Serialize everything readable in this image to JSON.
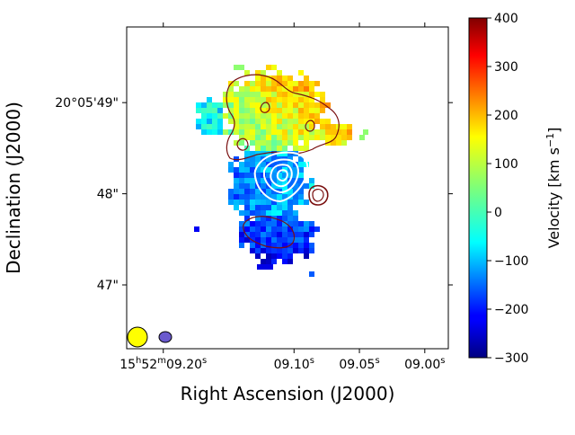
{
  "chart_data": {
    "type": "heatmap",
    "xlabel": "Right Ascension (J2000)",
    "ylabel": "Declination (J2000)",
    "x_ticks": [
      {
        "value": 9.2,
        "prefix": "15",
        "sup1": "h",
        "mid": "52",
        "sup2": "m",
        "rest": "09.20",
        "sup3": "s"
      },
      {
        "value": 9.1,
        "prefix": "",
        "sup1": "",
        "mid": "",
        "sup2": "",
        "rest": "09.10",
        "sup3": "s"
      },
      {
        "value": 9.05,
        "prefix": "",
        "sup1": "",
        "mid": "",
        "sup2": "",
        "rest": "09.05",
        "sup3": "s"
      },
      {
        "value": 9.0,
        "prefix": "",
        "sup1": "",
        "mid": "",
        "sup2": "",
        "rest": "09.00",
        "sup3": "s"
      }
    ],
    "y_ticks": [
      {
        "value": 49,
        "label": "20°05'49\""
      },
      {
        "value": 48,
        "label": "48\""
      },
      {
        "value": 47,
        "label": "47\""
      }
    ],
    "xlim": [
      9.228,
      8.982
    ],
    "ylim": [
      46.3,
      49.83
    ],
    "colorbar": {
      "label": "Velocity [km s",
      "label_sup": "−1",
      "label_end": "]",
      "range": [
        -300,
        400
      ],
      "ticks": [
        400,
        300,
        200,
        100,
        0,
        -100,
        -200,
        -300
      ],
      "tick_labels": [
        "400",
        "300",
        "200",
        "100",
        "0",
        "−100",
        "−200",
        "−300"
      ],
      "colormap": "jet"
    },
    "velocity_field": {
      "region_summary": [
        {
          "region": "northern lobe",
          "velocity_kms": 80
        },
        {
          "region": "central core",
          "velocity_kms": -120
        },
        {
          "region": "southern lobe",
          "velocity_kms": -180
        },
        {
          "region": "eastern edge",
          "velocity_kms": -20
        }
      ]
    },
    "contours": [
      {
        "name": "dark red contours",
        "color": "#7a1010"
      },
      {
        "name": "white contours",
        "color": "#ffffff"
      }
    ],
    "beams": [
      {
        "name": "beam-1",
        "color": "#ffff00"
      },
      {
        "name": "beam-2",
        "color": "#6a5acd"
      }
    ]
  }
}
